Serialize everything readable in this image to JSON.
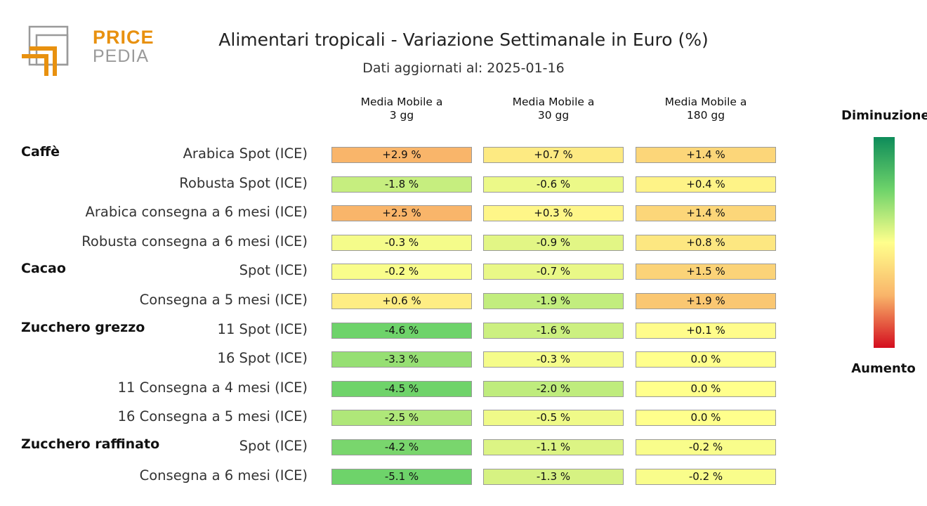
{
  "logo": {
    "line1": "PRICE",
    "line2": "PEDIA"
  },
  "title": "Alimentari tropicali - Variazione Settimanale in Euro (%)",
  "subtitle": "Dati aggiornati al: 2025-01-16",
  "legend": {
    "top": "Diminuzione",
    "bottom": "Aumento"
  },
  "colors": {
    "positive_max": "#f9b56a",
    "neutral": "#ffff8c",
    "negative_max": "#6ed36a",
    "logo_orange": "#e8910f",
    "logo_gray": "#9a9a9a"
  },
  "chart_data": {
    "type": "heatmap",
    "title": "Alimentari tropicali - Variazione Settimanale in Euro (%)",
    "subtitle": "Dati aggiornati al: 2025-01-16",
    "columns": [
      {
        "line1": "Media Mobile a",
        "line2": "3 gg"
      },
      {
        "line1": "Media Mobile a",
        "line2": "30 gg"
      },
      {
        "line1": "Media Mobile a",
        "line2": "180 gg"
      }
    ],
    "groups": [
      {
        "name": "Caffè",
        "rows": [
          {
            "label": "Arabica Spot (ICE)",
            "values": [
              2.9,
              0.7,
              1.4
            ],
            "texts": [
              "+2.9 %",
              "+0.7 %",
              "+1.4 %"
            ]
          },
          {
            "label": "Robusta Spot (ICE)",
            "values": [
              -1.8,
              -0.6,
              0.4
            ],
            "texts": [
              "-1.8 %",
              "-0.6 %",
              "+0.4 %"
            ]
          },
          {
            "label": "Arabica consegna a 6 mesi (ICE)",
            "values": [
              2.5,
              0.3,
              1.4
            ],
            "texts": [
              "+2.5 %",
              "+0.3 %",
              "+1.4 %"
            ]
          },
          {
            "label": "Robusta consegna a 6 mesi (ICE)",
            "values": [
              -0.3,
              -0.9,
              0.8
            ],
            "texts": [
              "-0.3 %",
              "-0.9 %",
              "+0.8 %"
            ]
          }
        ]
      },
      {
        "name": "Cacao",
        "rows": [
          {
            "label": "Spot (ICE)",
            "values": [
              -0.2,
              -0.7,
              1.5
            ],
            "texts": [
              "-0.2 %",
              "-0.7 %",
              "+1.5 %"
            ]
          },
          {
            "label": "Consegna a 5 mesi (ICE)",
            "values": [
              0.6,
              -1.9,
              1.9
            ],
            "texts": [
              "+0.6 %",
              "-1.9 %",
              "+1.9 %"
            ]
          }
        ]
      },
      {
        "name": "Zucchero grezzo",
        "rows": [
          {
            "label": "11 Spot (ICE)",
            "values": [
              -4.6,
              -1.6,
              0.1
            ],
            "texts": [
              "-4.6 %",
              "-1.6 %",
              "+0.1 %"
            ]
          },
          {
            "label": "16 Spot (ICE)",
            "values": [
              -3.3,
              -0.3,
              0.0
            ],
            "texts": [
              "-3.3 %",
              "-0.3 %",
              "0.0 %"
            ]
          },
          {
            "label": "11 Consegna a 4 mesi (ICE)",
            "values": [
              -4.5,
              -2.0,
              0.0
            ],
            "texts": [
              "-4.5 %",
              "-2.0 %",
              "0.0 %"
            ]
          },
          {
            "label": "16 Consegna a 5 mesi (ICE)",
            "values": [
              -2.5,
              -0.5,
              0.0
            ],
            "texts": [
              "-2.5 %",
              "-0.5 %",
              "0.0 %"
            ]
          }
        ]
      },
      {
        "name": "Zucchero raffinato",
        "rows": [
          {
            "label": "Spot (ICE)",
            "values": [
              -4.2,
              -1.1,
              -0.2
            ],
            "texts": [
              "-4.2 %",
              "-1.1 %",
              "-0.2 %"
            ]
          },
          {
            "label": "Consegna a 6 mesi (ICE)",
            "values": [
              -5.1,
              -1.3,
              -0.2
            ],
            "texts": [
              "-5.1 %",
              "-1.3 %",
              "-0.2 %"
            ]
          }
        ]
      }
    ],
    "legend_placement": "right"
  }
}
